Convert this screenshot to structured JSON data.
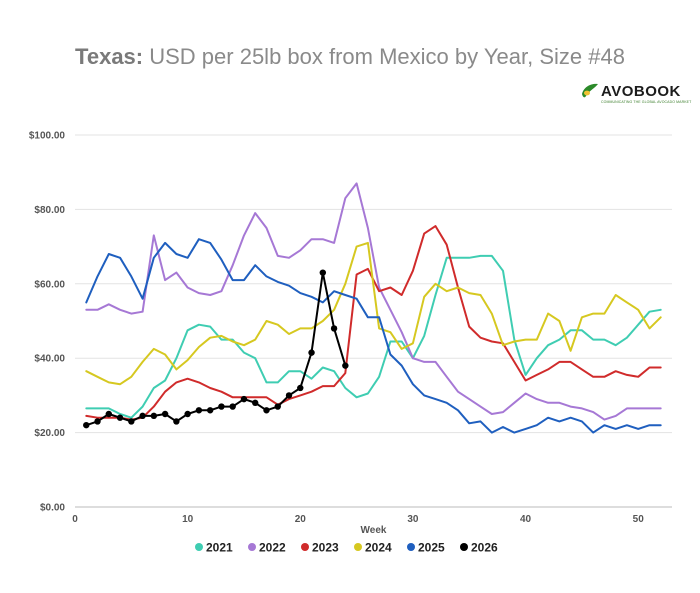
{
  "title": {
    "bold": "Texas:",
    "rest": " USD per 25lb box from Mexico by Year, Size #48"
  },
  "logo": {
    "name": "AVOBOOK",
    "tagline": "COMMUNICATING THE GLOBAL AVOCADO MARKET"
  },
  "chart_data": {
    "type": "line",
    "title": "Texas: USD per 25lb box from Mexico by Year, Size #48",
    "xlabel": "Week",
    "ylabel": "",
    "xlim": [
      0,
      53
    ],
    "ylim": [
      0,
      100
    ],
    "x_ticks": [
      0,
      10,
      20,
      30,
      40,
      50
    ],
    "y_ticks": [
      0,
      20,
      40,
      60,
      80,
      100
    ],
    "y_tick_labels": [
      "$0.00",
      "$20.00",
      "$40.00",
      "$60.00",
      "$80.00",
      "$100.00"
    ],
    "grid": true,
    "legend_position": "bottom",
    "series": [
      {
        "name": "2021",
        "color": "#3fcdb2",
        "markers": false,
        "x": [
          1,
          2,
          3,
          4,
          5,
          6,
          7,
          8,
          9,
          10,
          11,
          12,
          13,
          14,
          15,
          16,
          17,
          18,
          19,
          20,
          21,
          22,
          23,
          24,
          25,
          26,
          27,
          28,
          29,
          30,
          31,
          32,
          33,
          34,
          35,
          36,
          37,
          38,
          39,
          40,
          41,
          42,
          43,
          44,
          45,
          46,
          47,
          48,
          49,
          50,
          51,
          52
        ],
        "values": [
          26.5,
          26.5,
          26.5,
          25,
          24,
          27,
          32,
          34,
          40,
          47.5,
          49,
          48.5,
          45,
          45,
          41.5,
          40,
          33.5,
          33.5,
          36.5,
          36.5,
          34.5,
          37.5,
          36.5,
          32,
          29.5,
          30.5,
          35,
          44.5,
          44.5,
          40,
          46,
          57,
          67,
          67,
          67,
          67.5,
          67.5,
          63.5,
          45,
          35.5,
          40,
          43.5,
          45,
          47.5,
          47.5,
          45,
          45,
          43.5,
          45.5,
          49,
          52.5,
          53
        ]
      },
      {
        "name": "2022",
        "color": "#a678d5",
        "markers": false,
        "x": [
          1,
          2,
          3,
          4,
          5,
          6,
          7,
          8,
          9,
          10,
          11,
          12,
          13,
          14,
          15,
          16,
          17,
          18,
          19,
          20,
          21,
          22,
          23,
          24,
          25,
          26,
          27,
          28,
          29,
          30,
          31,
          32,
          33,
          34,
          35,
          36,
          37,
          38,
          39,
          40,
          41,
          42,
          43,
          44,
          45,
          46,
          47,
          48,
          49,
          50,
          51,
          52
        ],
        "values": [
          53,
          53,
          54.5,
          53,
          52,
          52.5,
          73,
          61,
          63,
          59,
          57.5,
          57,
          58,
          65,
          73,
          79,
          75,
          67.5,
          67,
          69,
          72,
          72,
          71,
          83,
          87,
          75,
          59,
          53,
          47,
          40,
          39,
          39,
          35,
          31,
          29,
          27,
          25,
          25.5,
          28,
          30.5,
          29,
          28,
          28,
          27,
          26.5,
          25.5,
          23.5,
          24.5,
          26.5,
          26.5,
          26.5,
          26.5
        ]
      },
      {
        "name": "2023",
        "color": "#d02b2b",
        "markers": false,
        "x": [
          1,
          2,
          3,
          4,
          5,
          6,
          7,
          8,
          9,
          10,
          11,
          12,
          13,
          14,
          15,
          16,
          17,
          18,
          19,
          20,
          21,
          22,
          23,
          24,
          25,
          26,
          27,
          28,
          29,
          30,
          31,
          32,
          33,
          34,
          35,
          36,
          37,
          38,
          39,
          40,
          41,
          42,
          43,
          44,
          45,
          46,
          47,
          48,
          49,
          50,
          51,
          52
        ],
        "values": [
          24.5,
          24,
          24,
          24,
          23.5,
          24,
          27,
          31,
          33.5,
          34.5,
          33.5,
          32,
          31,
          29.5,
          29.5,
          29.5,
          29.5,
          27.5,
          29,
          30,
          31,
          32.5,
          32.5,
          36,
          62.5,
          64,
          58,
          59,
          57,
          63.5,
          73.5,
          75.5,
          70.5,
          59,
          48.5,
          45.5,
          44.5,
          44,
          39,
          34,
          35.5,
          37,
          39,
          39,
          37,
          35,
          35,
          36.5,
          35.5,
          35,
          37.5,
          37.5
        ]
      },
      {
        "name": "2024",
        "color": "#d6c820",
        "markers": false,
        "x": [
          1,
          2,
          3,
          4,
          5,
          6,
          7,
          8,
          9,
          10,
          11,
          12,
          13,
          14,
          15,
          16,
          17,
          18,
          19,
          20,
          21,
          22,
          23,
          24,
          25,
          26,
          27,
          28,
          29,
          30,
          31,
          32,
          33,
          34,
          35,
          36,
          37,
          38,
          39,
          40,
          41,
          42,
          43,
          44,
          45,
          46,
          47,
          48,
          49,
          50,
          51,
          52
        ],
        "values": [
          36.5,
          35,
          33.5,
          33,
          35,
          39,
          42.5,
          41,
          37,
          39.5,
          43,
          45.5,
          46,
          44.5,
          43.5,
          45,
          50,
          49,
          46.5,
          48,
          48,
          50,
          53,
          60,
          70,
          71,
          48,
          47,
          42.5,
          44,
          56.5,
          60,
          58,
          59,
          57.5,
          57,
          52,
          43.5,
          44.5,
          45,
          45,
          52,
          50,
          42,
          51,
          52,
          52,
          57,
          55,
          53,
          48,
          51
        ]
      },
      {
        "name": "2025",
        "color": "#1f5fbf",
        "markers": false,
        "x": [
          1,
          2,
          3,
          4,
          5,
          6,
          7,
          8,
          9,
          10,
          11,
          12,
          13,
          14,
          15,
          16,
          17,
          18,
          19,
          20,
          21,
          22,
          23,
          24,
          25,
          26,
          27,
          28,
          29,
          30,
          31,
          32,
          33,
          34,
          35,
          36,
          37,
          38,
          39,
          40,
          41,
          42,
          43,
          44,
          45,
          46,
          47,
          48,
          49,
          50,
          51,
          52
        ],
        "values": [
          55,
          62,
          68,
          67,
          62,
          56,
          67,
          71,
          68,
          67,
          72,
          71,
          66.5,
          61,
          61,
          65,
          62,
          60.5,
          59.5,
          57.5,
          56.5,
          55,
          58,
          57,
          56,
          51,
          51,
          41,
          38,
          33,
          30,
          29,
          28,
          26,
          22.5,
          23,
          20,
          21.5,
          20,
          21,
          22,
          24,
          23,
          24,
          23,
          20,
          22,
          21,
          22,
          21,
          22,
          22
        ]
      },
      {
        "name": "2026",
        "color": "#000000",
        "markers": true,
        "x": [
          1,
          2,
          3,
          4,
          5,
          6,
          7,
          8,
          9,
          10,
          11,
          12,
          13,
          14,
          15,
          16,
          17,
          18,
          19,
          20,
          21,
          22,
          23,
          24
        ],
        "values": [
          22,
          23,
          25,
          24,
          23,
          24.5,
          24.5,
          25,
          23,
          25,
          26,
          26,
          27,
          27,
          29,
          28,
          26,
          27,
          30,
          32,
          41.5,
          63,
          48,
          38
        ]
      }
    ]
  }
}
